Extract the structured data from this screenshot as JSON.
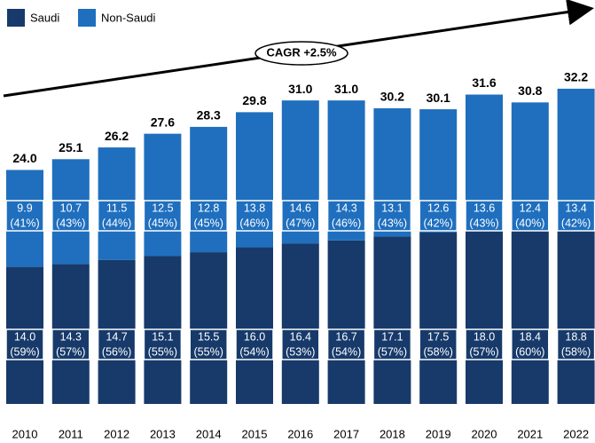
{
  "chart_data": {
    "type": "stacked_bar",
    "annotation": "CAGR +2.5%",
    "categories": [
      "2010",
      "2011",
      "2012",
      "2013",
      "2014",
      "2015",
      "2016",
      "2017",
      "2018",
      "2019",
      "2020",
      "2021",
      "2022"
    ],
    "series": [
      {
        "name": "Saudi",
        "color": "#173a6a",
        "values": [
          14.0,
          14.3,
          14.7,
          15.1,
          15.5,
          16.0,
          16.4,
          16.7,
          17.1,
          17.5,
          18.0,
          18.4,
          18.8
        ],
        "value_labels": [
          "14.0",
          "14.3",
          "14.7",
          "15.1",
          "15.5",
          "16.0",
          "16.4",
          "16.7",
          "17.1",
          "17.5",
          "18.0",
          "18.4",
          "18.8"
        ],
        "share_labels": [
          "(59%)",
          "(57%)",
          "(56%)",
          "(55%)",
          "(55%)",
          "(54%)",
          "(53%)",
          "(54%)",
          "(57%)",
          "(58%)",
          "(57%)",
          "(60%)",
          "(58%)"
        ]
      },
      {
        "name": "Non-Saudi",
        "color": "#1f6fbe",
        "values": [
          9.9,
          10.7,
          11.5,
          12.5,
          12.8,
          13.8,
          14.6,
          14.3,
          13.1,
          12.6,
          13.6,
          12.4,
          13.4
        ],
        "value_labels": [
          "9.9",
          "10.7",
          "11.5",
          "12.5",
          "12.8",
          "13.8",
          "14.6",
          "14.3",
          "13.1",
          "12.6",
          "13.6",
          "12.4",
          "13.4"
        ],
        "share_labels": [
          "(41%)",
          "(43%)",
          "(44%)",
          "(45%)",
          "(45%)",
          "(46%)",
          "(47%)",
          "(46%)",
          "(43%)",
          "(42%)",
          "(43%)",
          "(40%)",
          "(42%)"
        ]
      }
    ],
    "totals": [
      24.0,
      25.1,
      26.2,
      27.6,
      28.3,
      29.8,
      31.0,
      31.0,
      30.2,
      30.1,
      31.6,
      30.8,
      32.2
    ],
    "total_labels": [
      "24.0",
      "25.1",
      "26.2",
      "27.6",
      "28.3",
      "29.8",
      "31.0",
      "31.0",
      "30.2",
      "30.1",
      "31.6",
      "30.8",
      "32.2"
    ],
    "ylim": [
      0,
      36
    ],
    "legend": "top-left"
  }
}
